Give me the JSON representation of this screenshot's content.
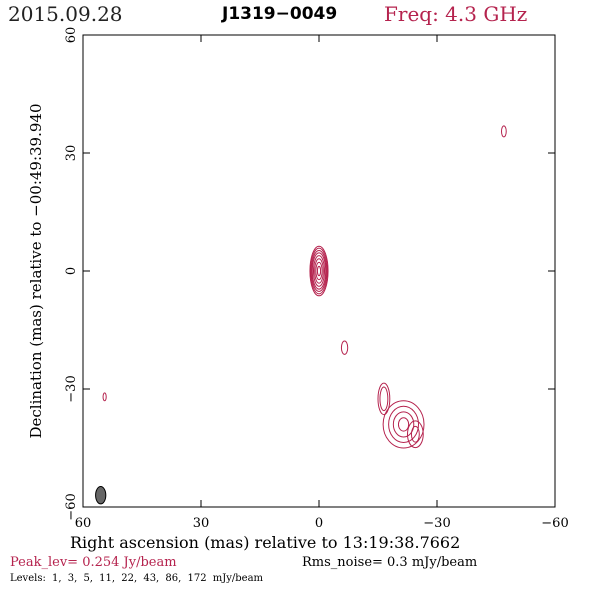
{
  "header": {
    "date": "2015.09.28",
    "source": "J1319−0049",
    "freq": "Freq: 4.3 GHz"
  },
  "footer": {
    "peak": "Peak_lev=  0.254 Jy/beam",
    "rms": "Rms_noise=  0.3 mJy/beam",
    "levels": "Levels:  1,  3,  5,  11,  22,  43,  86, 172 mJy/beam"
  },
  "colors": {
    "contour": "#b5234e",
    "beam": "#666666",
    "axis": "#000000"
  },
  "chart_data": {
    "type": "contour",
    "xlabel": "Right ascension (mas) relative to 13:19:38.7662",
    "ylabel": "Declination (mas) relative to −00:49:39.940",
    "xlim": [
      60,
      -60
    ],
    "ylim": [
      -60,
      60
    ],
    "xticks": [
      60,
      30,
      0,
      -30,
      -60
    ],
    "yticks": [
      -60,
      -30,
      0,
      30,
      60
    ],
    "xtick_labels": [
      "60",
      "30",
      "0",
      "−30",
      "−60"
    ],
    "ytick_labels": [
      "−60",
      "−30",
      "0",
      "30",
      "60"
    ],
    "contour_levels_mJy": [
      1,
      3,
      5,
      11,
      22,
      43,
      86,
      172
    ],
    "beam": {
      "ra": 55.5,
      "dec": -57,
      "major_mas": 4.4,
      "minor_mas": 2.6,
      "pa_deg": 0
    },
    "components": [
      {
        "name": "core",
        "ra": 0,
        "dec": 0,
        "rings": [
          {
            "rx": 2.3,
            "ry": 6.3
          },
          {
            "rx": 2.1,
            "ry": 5.8
          },
          {
            "rx": 1.9,
            "ry": 5.2
          },
          {
            "rx": 1.7,
            "ry": 4.6
          },
          {
            "rx": 1.4,
            "ry": 3.9
          },
          {
            "rx": 1.1,
            "ry": 3.1
          },
          {
            "rx": 0.8,
            "ry": 2.2
          },
          {
            "rx": 0.4,
            "ry": 1.2
          }
        ]
      },
      {
        "name": "knot-mid",
        "ra": -6.5,
        "dec": -19.5,
        "rings": [
          {
            "rx": 0.8,
            "ry": 1.7
          }
        ]
      },
      {
        "name": "knot-ne",
        "ra": -47,
        "dec": 35.5,
        "rings": [
          {
            "rx": 0.6,
            "ry": 1.4
          }
        ]
      },
      {
        "name": "knot-west",
        "ra": 54.5,
        "dec": -32,
        "rings": [
          {
            "rx": 0.4,
            "ry": 1.0
          }
        ]
      },
      {
        "name": "knot-jet-a",
        "ra": -16.5,
        "dec": -32.5,
        "rings": [
          {
            "rx": 1.5,
            "ry": 4.0
          },
          {
            "rx": 1.0,
            "ry": 3.0
          }
        ]
      },
      {
        "name": "knot-jet-b",
        "ra": -21.5,
        "dec": -39.0,
        "rings": [
          {
            "rx": 5.2,
            "ry": 6.0
          },
          {
            "rx": 3.8,
            "ry": 4.6
          },
          {
            "rx": 2.6,
            "ry": 3.2
          },
          {
            "rx": 1.3,
            "ry": 1.7
          }
        ]
      },
      {
        "name": "knot-jet-c",
        "ra": -24.5,
        "dec": -41.5,
        "rings": [
          {
            "rx": 2.0,
            "ry": 3.4
          },
          {
            "rx": 1.0,
            "ry": 2.0
          }
        ]
      }
    ]
  }
}
